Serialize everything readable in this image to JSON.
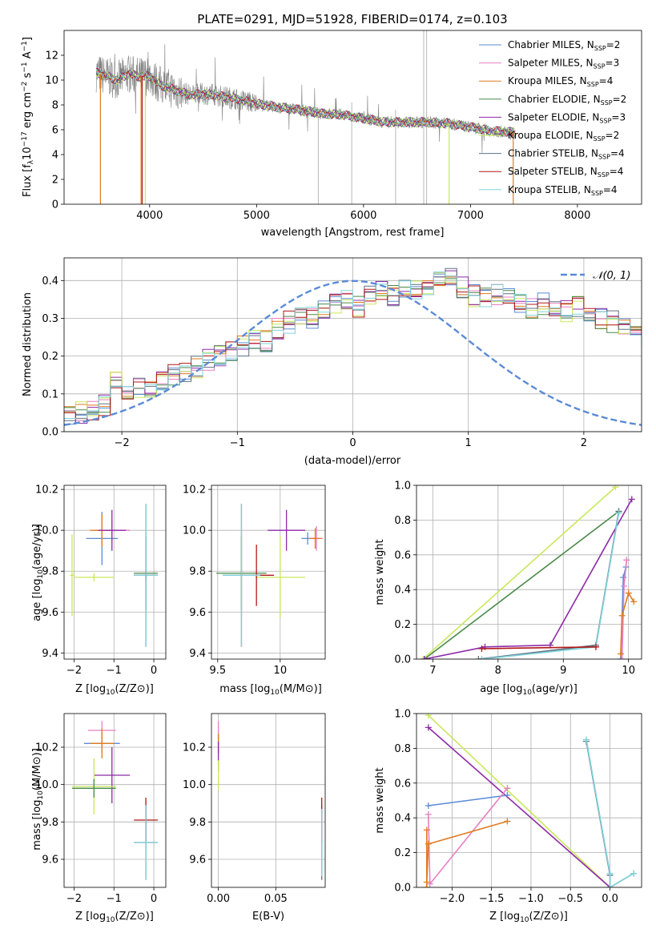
{
  "figure": {
    "title": "PLATE=0291, MJD=51928, FIBERID=0174, z=0.103"
  },
  "colors": {
    "chabrier_miles": "#5b8bd6",
    "salpeter_miles": "#e77fc0",
    "kroupa_miles": "#e07b1f",
    "chabrier_elodie": "#4a8a4a",
    "salpeter_elodie": "#8e2aa8",
    "kroupa_elodie": "#c9e85a",
    "chabrier_stelib": "#607080",
    "salpeter_stelib": "#b01818",
    "kroupa_stelib": "#80d4dc",
    "data": "#808080",
    "grid": "#b0b0b0",
    "normal": "#5b8bd6"
  },
  "chart_data": [
    {
      "id": "spectrum",
      "type": "line",
      "xlabel": "wavelength [Angstrom, rest frame]",
      "ylabel": "Flux [f",
      "xlim": [
        3200,
        8600
      ],
      "ylim": [
        0,
        14
      ],
      "xticks": [
        4000,
        5000,
        6000,
        7000,
        8000
      ],
      "yticks": [
        0,
        2,
        4,
        6,
        8,
        10,
        12
      ],
      "grid": false,
      "legend_position": "top-right",
      "series": [
        {
          "name": "Chabrier MILES",
          "nssp": "2",
          "color_key": "chabrier_miles"
        },
        {
          "name": "Salpeter MILES",
          "nssp": "3",
          "color_key": "salpeter_miles"
        },
        {
          "name": "Kroupa MILES",
          "nssp": "4",
          "color_key": "kroupa_miles"
        },
        {
          "name": "Chabrier ELODIE",
          "nssp": "2",
          "color_key": "chabrier_elodie"
        },
        {
          "name": "Salpeter ELODIE",
          "nssp": "3",
          "color_key": "salpeter_elodie"
        },
        {
          "name": "Kroupa ELODIE",
          "nssp": "2",
          "color_key": "kroupa_elodie"
        },
        {
          "name": "Chabrier STELIB",
          "nssp": "4",
          "color_key": "chabrier_stelib"
        },
        {
          "name": "Salpeter STELIB",
          "nssp": "4",
          "color_key": "salpeter_stelib"
        },
        {
          "name": "Kroupa STELIB",
          "nssp": "4",
          "color_key": "kroupa_stelib"
        }
      ],
      "continuum": {
        "x": [
          3500,
          3600,
          3700,
          3800,
          3900,
          4000,
          4100,
          4200,
          4300,
          4400,
          4500,
          4600,
          4800,
          5000,
          5200,
          5400,
          5600,
          5800,
          6000,
          6200,
          6400,
          6600,
          6800,
          7000,
          7200,
          7400
        ],
        "y": [
          10.6,
          10.3,
          10.0,
          10.5,
          10.3,
          10.3,
          9.6,
          9.3,
          9.0,
          8.8,
          8.9,
          8.8,
          8.5,
          8.1,
          7.8,
          7.6,
          7.3,
          7.2,
          6.9,
          6.6,
          6.6,
          6.6,
          6.5,
          6.2,
          5.9,
          5.8
        ]
      }
    },
    {
      "id": "residuals",
      "type": "histogram",
      "xlabel": "(data-model)/error",
      "ylabel": "Normed distribution",
      "xlim": [
        -2.5,
        2.5
      ],
      "ylim": [
        0,
        0.46
      ],
      "xticks": [
        -2,
        -1,
        0,
        1,
        2
      ],
      "yticks": [
        0.0,
        0.1,
        0.2,
        0.3,
        0.4
      ],
      "grid": true,
      "legend_position": "top-right",
      "legend_label": "𝒩(0, 1)",
      "bin_edges_start": -2.5,
      "bin_width": 0.1,
      "base_values": [
        0.05,
        0.05,
        0.06,
        0.07,
        0.13,
        0.11,
        0.12,
        0.12,
        0.14,
        0.15,
        0.16,
        0.17,
        0.19,
        0.2,
        0.21,
        0.23,
        0.25,
        0.24,
        0.27,
        0.29,
        0.31,
        0.3,
        0.33,
        0.34,
        0.35,
        0.33,
        0.36,
        0.37,
        0.36,
        0.38,
        0.37,
        0.39,
        0.4,
        0.41,
        0.38,
        0.36,
        0.35,
        0.36,
        0.35,
        0.34,
        0.33,
        0.34,
        0.33,
        0.32,
        0.33,
        0.31,
        0.3,
        0.29,
        0.28,
        0.27,
        0.25,
        0.24,
        0.22,
        0.2,
        0.19,
        0.18,
        0.17,
        0.15,
        0.14,
        0.13,
        0.12,
        0.12,
        0.11,
        0.09,
        0.08,
        0.07,
        0.06,
        0.05,
        0.05,
        0.05
      ],
      "normal_curve": {
        "mean": 0,
        "std": 1
      }
    },
    {
      "id": "age_vs_metallicity",
      "type": "scatter",
      "xlabel": "Z [log",
      "ylabel": "age  [log",
      "xlim": [
        -2.25,
        0.3
      ],
      "ylim": [
        9.37,
        10.22
      ],
      "xticks": [
        -2,
        -1,
        0
      ],
      "yticks": [
        9.4,
        9.6,
        9.8,
        10.0,
        10.2
      ],
      "grid": true,
      "points": [
        {
          "key": "chabrier_miles",
          "x": -1.3,
          "y": 9.96,
          "xerr": 0.4,
          "yerr": 0.13
        },
        {
          "key": "salpeter_miles",
          "x": -1.05,
          "y": 10.0,
          "xerr": 0.45,
          "yerr": 0.05
        },
        {
          "key": "kroupa_miles",
          "x": -1.3,
          "y": 10.0,
          "xerr": 0.3,
          "yerr": 0.08
        },
        {
          "key": "salpeter_elodie",
          "x": -1.05,
          "y": 10.0,
          "xerr": 0.35,
          "yerr": 0.1
        },
        {
          "key": "kroupa_elodie",
          "x": -2.05,
          "y": 9.78,
          "xerr": 0.05,
          "yerr": 0.2
        },
        {
          "key": "kroupa_elodie",
          "x": -1.5,
          "y": 9.77,
          "xerr": 0.5,
          "yerr": 0.02
        },
        {
          "key": "chabrier_elodie",
          "x": -0.2,
          "y": 9.79,
          "xerr": 0.3,
          "yerr": 0.18
        },
        {
          "key": "chabrier_stelib",
          "x": -0.2,
          "y": 9.78,
          "xerr": 0.3,
          "yerr": 0.35
        },
        {
          "key": "salpeter_stelib",
          "x": -0.2,
          "y": 9.78,
          "xerr": 0.3,
          "yerr": 0.02
        },
        {
          "key": "kroupa_stelib",
          "x": -0.2,
          "y": 9.78,
          "xerr": 0.3,
          "yerr": 0.35
        }
      ]
    },
    {
      "id": "age_vs_mass",
      "type": "scatter",
      "xlabel": "mass [log",
      "ylabel": "",
      "xlim": [
        9.45,
        10.36
      ],
      "ylim": [
        9.37,
        10.22
      ],
      "xticks": [
        9.5,
        10.0
      ],
      "yticks": [
        9.4,
        9.6,
        9.8,
        10.0,
        10.2
      ],
      "grid": true,
      "points": [
        {
          "key": "chabrier_miles",
          "x": 10.22,
          "y": 9.96,
          "xerr": 0.05,
          "yerr": 0.03
        },
        {
          "key": "salpeter_miles",
          "x": 10.29,
          "y": 9.96,
          "xerr": 0.05,
          "yerr": 0.06
        },
        {
          "key": "kroupa_miles",
          "x": 10.28,
          "y": 9.96,
          "xerr": 0.05,
          "yerr": 0.05
        },
        {
          "key": "salpeter_elodie",
          "x": 10.05,
          "y": 10.0,
          "xerr": 0.15,
          "yerr": 0.1
        },
        {
          "key": "kroupa_elodie",
          "x": 10.0,
          "y": 9.77,
          "xerr": 0.2,
          "yerr": 0.2
        },
        {
          "key": "chabrier_elodie",
          "x": 9.69,
          "y": 9.79,
          "xerr": 0.2,
          "yerr": 0.18
        },
        {
          "key": "chabrier_stelib",
          "x": 9.69,
          "y": 9.78,
          "xerr": 0.15,
          "yerr": 0.35
        },
        {
          "key": "salpeter_stelib",
          "x": 9.81,
          "y": 9.78,
          "xerr": 0.14,
          "yerr": 0.15
        },
        {
          "key": "kroupa_stelib",
          "x": 9.69,
          "y": 9.78,
          "xerr": 0.15,
          "yerr": 0.35
        }
      ]
    },
    {
      "id": "mass_weight_vs_age",
      "type": "line",
      "xlabel": "age  [log",
      "ylabel": "mass weight",
      "xlim": [
        6.75,
        10.2
      ],
      "ylim": [
        0,
        1
      ],
      "xticks": [
        7,
        8,
        9,
        10
      ],
      "yticks": [
        0.0,
        0.2,
        0.4,
        0.6,
        0.8,
        1.0
      ],
      "grid": true,
      "series": [
        {
          "key": "kroupa_elodie",
          "x": [
            6.85,
            9.8
          ],
          "y": [
            0.0,
            0.99
          ]
        },
        {
          "key": "chabrier_elodie",
          "x": [
            6.87,
            9.85
          ],
          "y": [
            0.0,
            0.85
          ]
        },
        {
          "key": "salpeter_elodie",
          "x": [
            6.87,
            7.8,
            8.8,
            10.05
          ],
          "y": [
            0.0,
            0.07,
            0.08,
            0.92
          ]
        },
        {
          "key": "chabrier_stelib",
          "x": [
            7.7,
            9.5,
            9.85
          ],
          "y": [
            0.0,
            0.08,
            0.85
          ]
        },
        {
          "key": "kroupa_stelib",
          "x": [
            7.75,
            9.5,
            9.85
          ],
          "y": [
            0.0,
            0.07,
            0.84
          ]
        },
        {
          "key": "salpeter_stelib",
          "x": [
            7.75,
            9.5
          ],
          "y": [
            0.06,
            0.07
          ]
        },
        {
          "key": "chabrier_miles",
          "x": [
            9.88,
            9.92,
            9.96
          ],
          "y": [
            0.0,
            0.47,
            0.53
          ]
        },
        {
          "key": "salpeter_miles",
          "x": [
            9.9,
            9.93,
            9.97
          ],
          "y": [
            0.0,
            0.42,
            0.57
          ]
        },
        {
          "key": "kroupa_miles",
          "x": [
            9.88,
            9.9,
            10.0,
            10.08
          ],
          "y": [
            0.03,
            0.25,
            0.38,
            0.33
          ]
        }
      ]
    },
    {
      "id": "mass_vs_metallicity",
      "type": "scatter",
      "xlabel": "Z [log",
      "ylabel": "mass [log",
      "xlim": [
        -2.25,
        0.3
      ],
      "ylim": [
        9.45,
        10.38
      ],
      "xticks": [
        -2,
        -1,
        0
      ],
      "yticks": [
        9.6,
        9.8,
        10.0,
        10.2
      ],
      "grid": true,
      "points": [
        {
          "key": "chabrier_miles",
          "x": -1.3,
          "y": 10.22,
          "xerr": 0.45,
          "yerr": 0.05
        },
        {
          "key": "salpeter_miles",
          "x": -1.3,
          "y": 10.29,
          "xerr": 0.35,
          "yerr": 0.05
        },
        {
          "key": "kroupa_miles",
          "x": -1.3,
          "y": 10.22,
          "xerr": 0.3,
          "yerr": 0.08
        },
        {
          "key": "salpeter_elodie",
          "x": -1.05,
          "y": 10.05,
          "xerr": 0.45,
          "yerr": 0.15
        },
        {
          "key": "kroupa_elodie",
          "x": -1.5,
          "y": 9.99,
          "xerr": 0.55,
          "yerr": 0.15
        },
        {
          "key": "chabrier_elodie",
          "x": -1.5,
          "y": 9.98,
          "xerr": 0.55,
          "yerr": 0.05
        },
        {
          "key": "chabrier_stelib",
          "x": -0.2,
          "y": 9.69,
          "xerr": 0.3,
          "yerr": 0.2
        },
        {
          "key": "salpeter_stelib",
          "x": -0.2,
          "y": 9.81,
          "xerr": 0.3,
          "yerr": 0.12
        },
        {
          "key": "kroupa_stelib",
          "x": -0.2,
          "y": 9.69,
          "xerr": 0.3,
          "yerr": 0.2
        }
      ]
    },
    {
      "id": "mass_vs_ebv",
      "type": "scatter",
      "xlabel": "E(B-V)",
      "ylabel": "",
      "xlim": [
        -0.006,
        0.093
      ],
      "ylim": [
        9.45,
        10.38
      ],
      "xticks": [
        0.0,
        0.05
      ],
      "xtick_labels": [
        "0.00",
        "0.05"
      ],
      "yticks": [
        9.6,
        9.8,
        10.0,
        10.2
      ],
      "grid": true,
      "points": [
        {
          "key": "chabrier_miles",
          "x": 0.0,
          "y": 10.22,
          "xerr": 0,
          "yerr": 0.05
        },
        {
          "key": "salpeter_miles",
          "x": 0.0,
          "y": 10.29,
          "xerr": 0,
          "yerr": 0.05
        },
        {
          "key": "kroupa_miles",
          "x": 0.0,
          "y": 10.22,
          "xerr": 0,
          "yerr": 0.05
        },
        {
          "key": "salpeter_elodie",
          "x": 0.0,
          "y": 10.15,
          "xerr": 0,
          "yerr": 0.08
        },
        {
          "key": "kroupa_elodie",
          "x": 0.0,
          "y": 10.05,
          "xerr": 0,
          "yerr": 0.08
        },
        {
          "key": "chabrier_stelib",
          "x": 0.09,
          "y": 9.69,
          "xerr": 0,
          "yerr": 0.2
        },
        {
          "key": "salpeter_stelib",
          "x": 0.09,
          "y": 9.81,
          "xerr": 0,
          "yerr": 0.12
        },
        {
          "key": "kroupa_stelib",
          "x": 0.09,
          "y": 9.69,
          "xerr": 0,
          "yerr": 0.18
        }
      ]
    },
    {
      "id": "mass_weight_vs_metallicity",
      "type": "line",
      "xlabel": "Z [log",
      "ylabel": "mass weight",
      "xlim": [
        -2.45,
        0.4
      ],
      "ylim": [
        0,
        1
      ],
      "xticks": [
        -2.0,
        -1.5,
        -1.0,
        -0.5,
        0.0
      ],
      "xtick_labels": [
        "−2.0",
        "−1.5",
        "−1.0",
        "−0.5",
        "0.0"
      ],
      "yticks": [
        0.0,
        0.2,
        0.4,
        0.6,
        0.8,
        1.0
      ],
      "grid": true,
      "series": [
        {
          "key": "kroupa_elodie",
          "x": [
            -2.3,
            0.0
          ],
          "y": [
            0.99,
            0.0
          ]
        },
        {
          "key": "salpeter_elodie",
          "x": [
            -2.3,
            0.0
          ],
          "y": [
            0.92,
            0.0
          ]
        },
        {
          "key": "chabrier_miles",
          "x": [
            -2.3,
            -1.3
          ],
          "y": [
            0.47,
            0.53
          ]
        },
        {
          "key": "salpeter_miles",
          "x": [
            -2.3,
            -2.28,
            -1.3
          ],
          "y": [
            0.42,
            0.02,
            0.57
          ]
        },
        {
          "key": "kroupa_miles",
          "x": [
            -2.32,
            -2.3,
            -1.3
          ],
          "y": [
            0.03,
            0.25,
            0.38
          ]
        },
        {
          "key": "kroupa_miles",
          "x": [
            -2.32,
            -2.32
          ],
          "y": [
            0.0,
            0.33
          ]
        },
        {
          "key": "chabrier_stelib",
          "x": [
            -0.3,
            0.0,
            0.0,
            0.3
          ],
          "y": [
            0.84,
            0.07,
            0.0,
            0.08
          ]
        },
        {
          "key": "kroupa_stelib",
          "x": [
            -0.3,
            0.0,
            0.0,
            0.3
          ],
          "y": [
            0.85,
            0.08,
            0.0,
            0.08
          ]
        }
      ]
    }
  ]
}
